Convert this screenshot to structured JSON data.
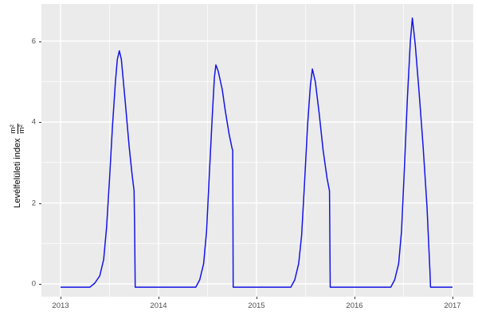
{
  "colors": {
    "panel_bg": "#EBEBEB",
    "figure_bg": "#FFFFFF",
    "grid_major": "#FFFFFF",
    "grid_minor": "#FFFFFF",
    "line": "#1414E8",
    "tick_text": "#4D4D4D",
    "axis_title_text": "#000000",
    "tick_mark": "#333333"
  },
  "chart_data": {
    "type": "line",
    "title": "",
    "xlabel": "",
    "ylabel_text": "Levélfelületi index",
    "ylabel_unit_numerator": "m²",
    "ylabel_unit_denominator": "m²",
    "x_ticks": [
      "2013",
      "2014",
      "2015",
      "2016",
      "2017"
    ],
    "x_tick_values": [
      2013,
      2014,
      2015,
      2016,
      2017
    ],
    "x_minor_values": [
      2013.5,
      2014.5,
      2015.5,
      2016.5
    ],
    "y_ticks": [
      "0",
      "2",
      "4",
      "6"
    ],
    "y_tick_values": [
      0,
      2,
      4,
      6
    ],
    "y_minor_values": [
      1,
      3,
      5
    ],
    "xlim": [
      2012.8,
      2017.2
    ],
    "ylim": [
      -0.3,
      6.95
    ],
    "grid": true,
    "legend": false,
    "series": [
      {
        "name": "Levélfelületi index",
        "color": "#1414E8",
        "points": [
          [
            2013.0,
            -0.08
          ],
          [
            2013.3,
            -0.08
          ],
          [
            2013.35,
            0.02
          ],
          [
            2013.4,
            0.2
          ],
          [
            2013.44,
            0.6
          ],
          [
            2013.47,
            1.4
          ],
          [
            2013.5,
            2.6
          ],
          [
            2013.53,
            3.9
          ],
          [
            2013.56,
            5.0
          ],
          [
            2013.58,
            5.55
          ],
          [
            2013.6,
            5.76
          ],
          [
            2013.62,
            5.55
          ],
          [
            2013.66,
            4.5
          ],
          [
            2013.7,
            3.4
          ],
          [
            2013.73,
            2.7
          ],
          [
            2013.75,
            2.3
          ],
          [
            2013.757,
            1.2
          ],
          [
            2013.762,
            -0.08
          ],
          [
            2014.38,
            -0.08
          ],
          [
            2014.42,
            0.1
          ],
          [
            2014.46,
            0.5
          ],
          [
            2014.49,
            1.3
          ],
          [
            2014.52,
            2.8
          ],
          [
            2014.55,
            4.2
          ],
          [
            2014.57,
            5.1
          ],
          [
            2014.585,
            5.41
          ],
          [
            2014.61,
            5.25
          ],
          [
            2014.65,
            4.8
          ],
          [
            2014.68,
            4.3
          ],
          [
            2014.72,
            3.7
          ],
          [
            2014.75,
            3.35
          ],
          [
            2014.757,
            3.3
          ],
          [
            2014.762,
            -0.08
          ],
          [
            2015.35,
            -0.08
          ],
          [
            2015.39,
            0.1
          ],
          [
            2015.43,
            0.5
          ],
          [
            2015.46,
            1.2
          ],
          [
            2015.49,
            2.5
          ],
          [
            2015.52,
            3.9
          ],
          [
            2015.55,
            4.9
          ],
          [
            2015.57,
            5.31
          ],
          [
            2015.6,
            5.0
          ],
          [
            2015.64,
            4.2
          ],
          [
            2015.68,
            3.3
          ],
          [
            2015.72,
            2.6
          ],
          [
            2015.745,
            2.3
          ],
          [
            2015.752,
            -0.08
          ],
          [
            2016.37,
            -0.08
          ],
          [
            2016.41,
            0.1
          ],
          [
            2016.45,
            0.5
          ],
          [
            2016.48,
            1.3
          ],
          [
            2016.51,
            2.9
          ],
          [
            2016.54,
            4.6
          ],
          [
            2016.57,
            6.0
          ],
          [
            2016.59,
            6.57
          ],
          [
            2016.62,
            5.9
          ],
          [
            2016.66,
            4.7
          ],
          [
            2016.7,
            3.4
          ],
          [
            2016.74,
            1.9
          ],
          [
            2016.77,
            0.3
          ],
          [
            2016.776,
            -0.08
          ],
          [
            2017.0,
            -0.08
          ]
        ]
      }
    ]
  }
}
